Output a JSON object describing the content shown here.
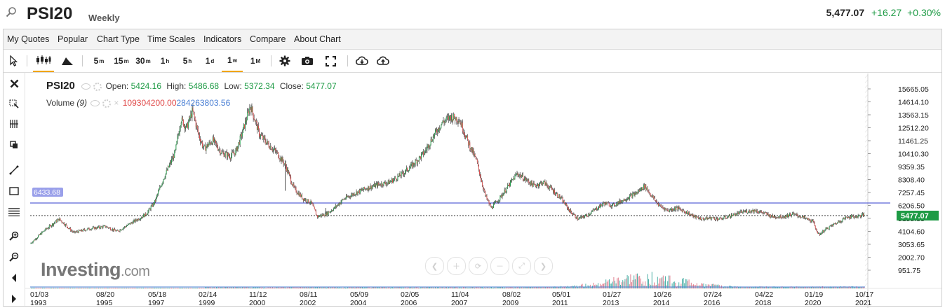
{
  "header": {
    "symbol": "PSI20",
    "period": "Weekly",
    "last": "5,477.07",
    "change": "+16.27",
    "change_pct": "+0.30%",
    "up_color": "#1e9b45"
  },
  "menu": [
    "My Quotes",
    "Popular",
    "Chart Type",
    "Time Scales",
    "Indicators",
    "Compare",
    "About Chart"
  ],
  "timeframes": [
    {
      "base": "5",
      "sup": "m"
    },
    {
      "base": "15",
      "sup": "m"
    },
    {
      "base": "30",
      "sup": "m"
    },
    {
      "base": "1",
      "sup": "h"
    },
    {
      "base": "5",
      "sup": "h"
    },
    {
      "base": "1",
      "sup": "d"
    },
    {
      "base": "1",
      "sup": "w"
    },
    {
      "base": "1",
      "sup": "M"
    }
  ],
  "active_timeframe": "1w",
  "legend": {
    "symbol": "PSI20",
    "open_label": "Open:",
    "open": "5424.16",
    "high_label": "High:",
    "high": "5486.68",
    "low_label": "Low:",
    "low": "5372.34",
    "close_label": "Close:",
    "close": "5477.07",
    "volume_label": "Volume",
    "volume_period": "(9)",
    "volume_value": "109304200.00",
    "volume_ma": "284263803.56"
  },
  "brand": {
    "name": "Investing",
    "suffix": ".com"
  },
  "chart_data": {
    "type": "line",
    "style": "candlestick",
    "yaxis_side": "right",
    "yticks": [
      "15665.05",
      "14614.10",
      "13563.15",
      "12512.20",
      "11461.25",
      "10410.30",
      "9359.35",
      "8308.40",
      "7257.45",
      "6206.50",
      "5155.55",
      "4104.60",
      "3053.65",
      "2002.70",
      "951.75"
    ],
    "xticks": [
      {
        "date": "01/03",
        "year": "1993"
      },
      {
        "date": "08/20",
        "year": "1995"
      },
      {
        "date": "05/18",
        "year": "1997"
      },
      {
        "date": "02/14",
        "year": "1999"
      },
      {
        "date": "11/12",
        "year": "2000"
      },
      {
        "date": "08/11",
        "year": "2002"
      },
      {
        "date": "05/09",
        "year": "2004"
      },
      {
        "date": "02/05",
        "year": "2006"
      },
      {
        "date": "11/04",
        "year": "2007"
      },
      {
        "date": "08/02",
        "year": "2009"
      },
      {
        "date": "05/01",
        "year": "2011"
      },
      {
        "date": "01/27",
        "year": "2013"
      },
      {
        "date": "10/26",
        "year": "2014"
      },
      {
        "date": "07/24",
        "year": "2016"
      },
      {
        "date": "04/22",
        "year": "2018"
      },
      {
        "date": "01/19",
        "year": "2020"
      },
      {
        "date": "10/17",
        "year": "2021"
      }
    ],
    "ylim": [
      951.75,
      15665.05
    ],
    "horizontal_line": {
      "value": 6433.68,
      "label": "6433.68",
      "color": "#5b63d6"
    },
    "last_price": {
      "value": 5477.07,
      "label": "5477.07",
      "color": "#1e9b45"
    },
    "series": [
      {
        "x": [
          1993.0,
          1993.5,
          1994.0,
          1994.5,
          1995.0,
          1995.6,
          1996.0,
          1996.5,
          1997.0,
          1997.3,
          1997.6,
          1998.0,
          1998.2,
          1998.4,
          1998.6,
          1998.8,
          1999.0,
          1999.3,
          1999.6,
          1999.9,
          2000.1,
          2000.3,
          2000.6,
          2000.9,
          2001.2,
          2001.5,
          2001.8,
          2002.1,
          2002.4,
          2002.7,
          2002.9,
          2003.2,
          2003.5,
          2003.8,
          2004.2,
          2004.6,
          2005.0,
          2005.4,
          2005.8,
          2006.2,
          2006.6,
          2006.9,
          2007.2,
          2007.5,
          2007.8,
          2008.1,
          2008.4,
          2008.7,
          2008.9,
          2009.2,
          2009.5,
          2009.8,
          2010.1,
          2010.4,
          2010.7,
          2011.0,
          2011.3,
          2011.6,
          2011.9,
          2012.2,
          2012.5,
          2012.8,
          2013.1,
          2013.5,
          2013.9,
          2014.2,
          2014.4,
          2014.7,
          2015.0,
          2015.3,
          2015.6,
          2015.9,
          2016.2,
          2016.5,
          2016.8,
          2017.2,
          2017.6,
          2018.0,
          2018.3,
          2018.6,
          2019.0,
          2019.3,
          2019.6,
          2020.0,
          2020.2,
          2020.4,
          2020.6,
          2020.9,
          2021.2,
          2021.5,
          2021.8
        ],
        "y": [
          3100,
          4200,
          5100,
          4000,
          4300,
          4500,
          4100,
          4800,
          5500,
          6500,
          8400,
          10500,
          13200,
          12500,
          13900,
          12000,
          10800,
          11500,
          10500,
          10200,
          10600,
          12000,
          14300,
          12000,
          11200,
          10500,
          9500,
          7600,
          6800,
          6400,
          5300,
          5500,
          6000,
          6700,
          7200,
          7600,
          7900,
          8100,
          8700,
          9500,
          10500,
          11800,
          12900,
          13400,
          13200,
          11400,
          9800,
          7000,
          6000,
          6800,
          7800,
          8800,
          8300,
          7800,
          8100,
          7500,
          6800,
          5800,
          5100,
          5400,
          5900,
          6400,
          6200,
          6700,
          7200,
          7800,
          7100,
          6200,
          5800,
          6000,
          5700,
          5300,
          5100,
          5200,
          5100,
          5400,
          5700,
          5800,
          5600,
          5300,
          5300,
          5500,
          5300,
          4900,
          3800,
          4200,
          4500,
          4900,
          5300,
          5300,
          5477
        ]
      }
    ]
  }
}
